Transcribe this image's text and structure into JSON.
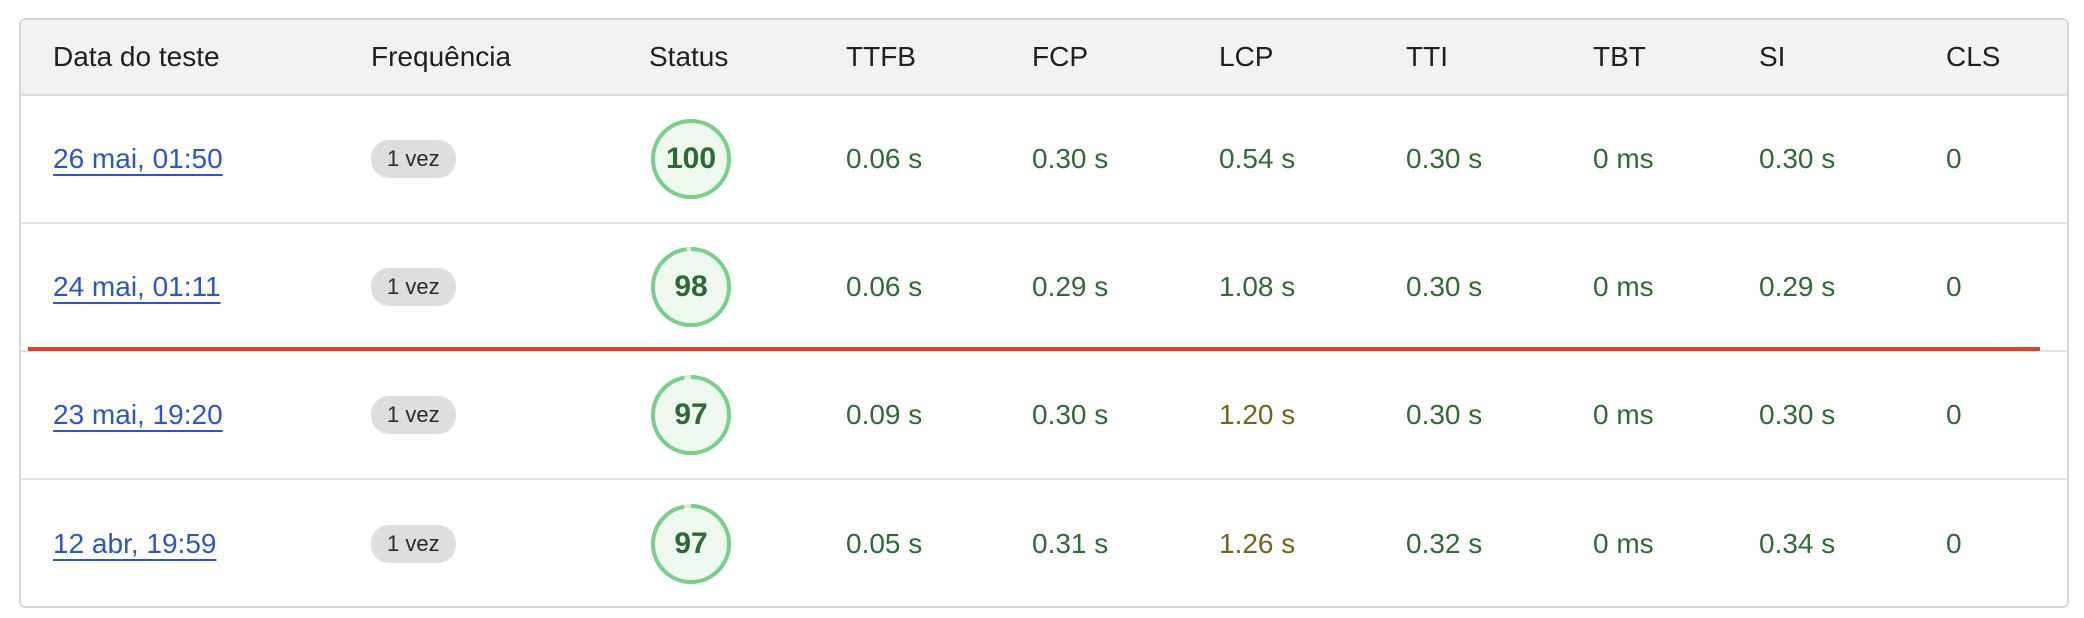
{
  "headers": {
    "date": "Data do teste",
    "frequency": "Frequência",
    "status": "Status",
    "ttfb": "TTFB",
    "fcp": "FCP",
    "lcp": "LCP",
    "tti": "TTI",
    "tbt": "TBT",
    "si": "SI",
    "cls": "CLS"
  },
  "rows": [
    {
      "date": "26 mai, 01:50",
      "frequency": "1 vez",
      "score": "100",
      "score_value": 100,
      "ttfb": "0.06 s",
      "fcp": "0.30 s",
      "lcp": "0.54 s",
      "lcp_status": "good",
      "tti": "0.30 s",
      "tbt": "0 ms",
      "si": "0.30 s",
      "cls": "0"
    },
    {
      "date": "24 mai, 01:11",
      "frequency": "1 vez",
      "score": "98",
      "score_value": 98,
      "ttfb": "0.06 s",
      "fcp": "0.29 s",
      "lcp": "1.08 s",
      "lcp_status": "good",
      "tti": "0.30 s",
      "tbt": "0 ms",
      "si": "0.29 s",
      "cls": "0"
    },
    {
      "date": "23 mai, 19:20",
      "frequency": "1 vez",
      "score": "97",
      "score_value": 97,
      "ttfb": "0.09 s",
      "fcp": "0.30 s",
      "lcp": "1.20 s",
      "lcp_status": "needs-improvement",
      "tti": "0.30 s",
      "tbt": "0 ms",
      "si": "0.30 s",
      "cls": "0"
    },
    {
      "date": "12 abr, 19:59",
      "frequency": "1 vez",
      "score": "97",
      "score_value": 97,
      "ttfb": "0.05 s",
      "fcp": "0.31 s",
      "lcp": "1.26 s",
      "lcp_status": "needs-improvement",
      "tti": "0.32 s",
      "tbt": "0 ms",
      "si": "0.34 s",
      "cls": "0"
    }
  ],
  "colors": {
    "good": "#2f6b34",
    "needs_improvement": "#7a6119",
    "gauge_ring": "#78cf87",
    "gauge_fill": "#eef8ee",
    "link": "#2b56c6",
    "divider_marker": "#e0412d"
  }
}
